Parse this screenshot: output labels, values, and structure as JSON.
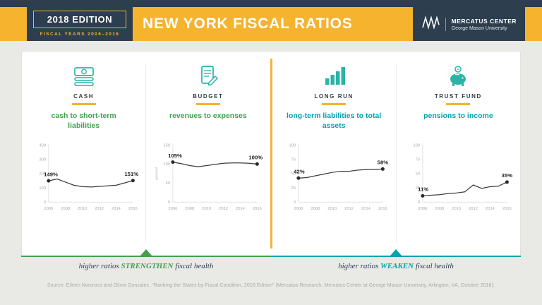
{
  "header": {
    "edition": "2018 EDITION",
    "fiscal_years": "FISCAL YEARS 2006–2016",
    "title": "NEW YORK FISCAL RATIOS",
    "brand_name": "MERCATUS CENTER",
    "brand_sub": "George Mason University"
  },
  "colors": {
    "navy": "#2d3e4e",
    "gold": "#f5b32e",
    "green": "#42a04e",
    "teal": "#00a3ad"
  },
  "footers": {
    "left": {
      "prefix": "higher ratios ",
      "emphasis": "STRENGTHEN",
      "suffix": " fiscal health"
    },
    "right": {
      "prefix": "higher ratios ",
      "emphasis": "WEAKEN",
      "suffix": " fiscal health"
    }
  },
  "source": "Source: Eileen Norcross and Olivia Gonzalez, “Ranking the States by Fiscal Condition, 2018 Edition” (Mercatus Research, Mercatus Center at George Mason University, Arlington, VA, October 2018).",
  "chart_data": [
    {
      "type": "line",
      "panel_label": "CASH",
      "icon": "money-stack-icon",
      "title": "cash to short-term liabilities",
      "title_color": "#42a04e",
      "x": [
        2006,
        2007,
        2008,
        2009,
        2010,
        2011,
        2012,
        2013,
        2014,
        2015,
        2016
      ],
      "values": [
        149,
        162,
        140,
        118,
        108,
        106,
        110,
        114,
        118,
        134,
        151
      ],
      "x_ticks": [
        2006,
        2008,
        2010,
        2012,
        2014,
        2016
      ],
      "y_ticks": [
        0,
        100,
        200,
        300,
        400
      ],
      "ylim": [
        0,
        400
      ],
      "first_label": "149%",
      "last_label": "151%",
      "ylabel": ""
    },
    {
      "type": "line",
      "panel_label": "BUDGET",
      "icon": "budget-clipboard-icon",
      "title": "revenues to expenses",
      "title_color": "#42a04e",
      "x": [
        2006,
        2007,
        2008,
        2009,
        2010,
        2011,
        2012,
        2013,
        2014,
        2015,
        2016
      ],
      "values": [
        105,
        101,
        96,
        93,
        96,
        99,
        102,
        103,
        103,
        102,
        100
      ],
      "x_ticks": [
        2006,
        2008,
        2010,
        2012,
        2014,
        2016
      ],
      "y_ticks": [
        0,
        50,
        100,
        150
      ],
      "ylim": [
        0,
        150
      ],
      "first_label": "105%",
      "last_label": "100%",
      "ylabel": "percent"
    },
    {
      "type": "line",
      "panel_label": "LONG RUN",
      "icon": "bar-chart-icon",
      "title": "long-term liabilities to total assets",
      "title_color": "#00a3ad",
      "x": [
        2006,
        2007,
        2008,
        2009,
        2010,
        2011,
        2012,
        2013,
        2014,
        2015,
        2016
      ],
      "values": [
        42,
        43,
        46,
        49,
        52,
        54,
        54,
        56,
        57,
        57,
        58
      ],
      "x_ticks": [
        2006,
        2008,
        2010,
        2012,
        2014,
        2016
      ],
      "y_ticks": [
        0,
        25,
        50,
        75,
        100
      ],
      "ylim": [
        0,
        100
      ],
      "first_label": "42%",
      "last_label": "58%",
      "ylabel": ""
    },
    {
      "type": "line",
      "panel_label": "TRUST FUND",
      "icon": "piggy-bank-icon",
      "title": "pensions to income",
      "title_color": "#00a3ad",
      "x": [
        2006,
        2007,
        2008,
        2009,
        2010,
        2011,
        2012,
        2013,
        2014,
        2015,
        2016
      ],
      "values": [
        11,
        12,
        13,
        15,
        16,
        18,
        30,
        24,
        27,
        28,
        35
      ],
      "x_ticks": [
        2006,
        2008,
        2010,
        2012,
        2014,
        2016
      ],
      "y_ticks": [
        0,
        25,
        50,
        75,
        100
      ],
      "ylim": [
        0,
        100
      ],
      "first_label": "11%",
      "last_label": "35%",
      "ylabel": ""
    }
  ]
}
